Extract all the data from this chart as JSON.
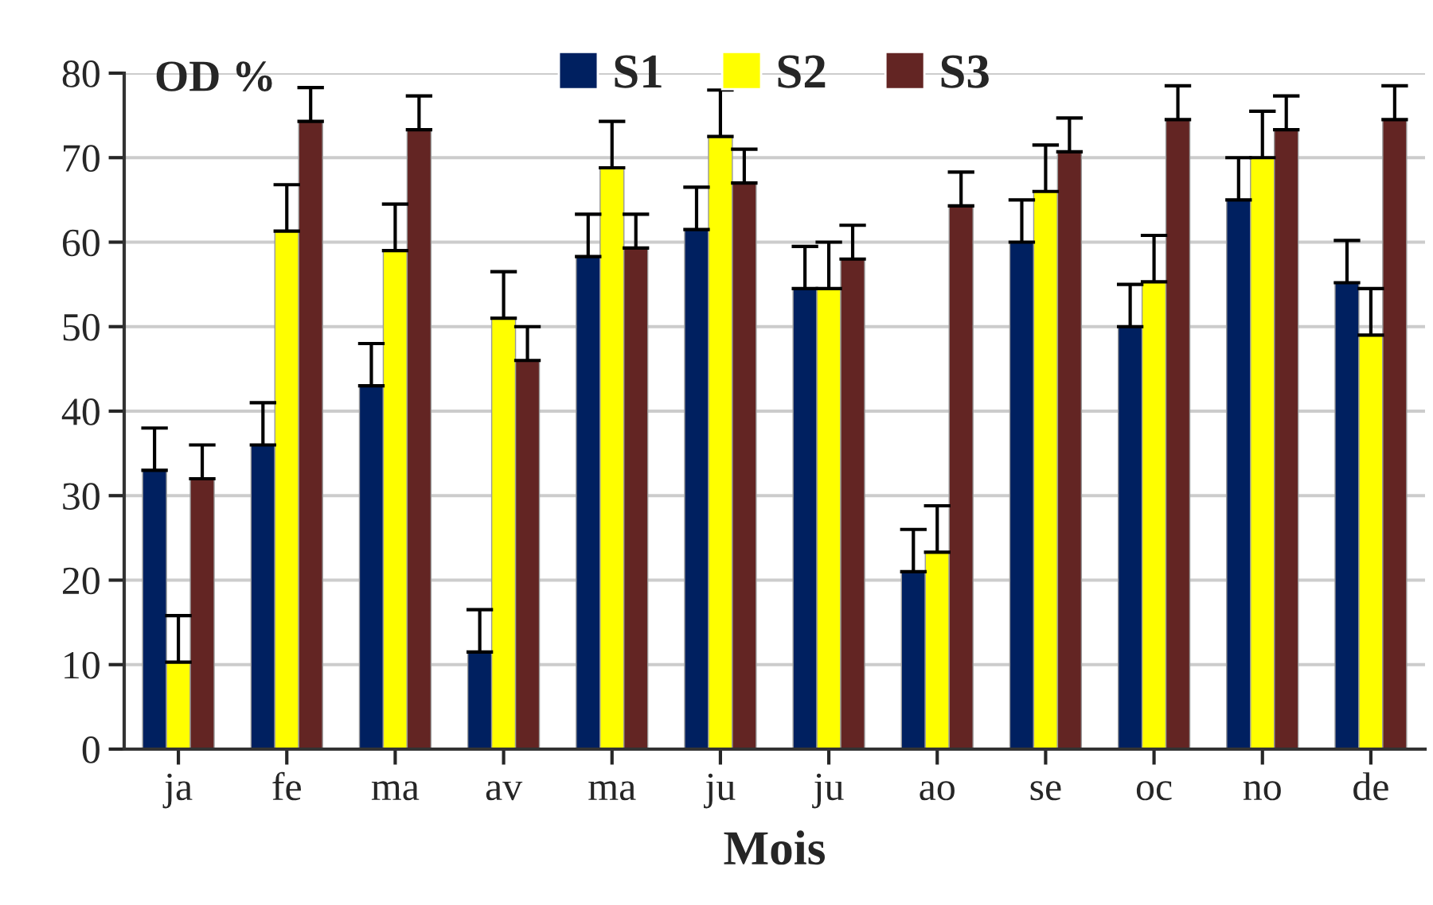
{
  "chart_data": {
    "type": "bar",
    "xlabel": "Mois",
    "ylabel": "OD %",
    "categories": [
      "ja",
      "fe",
      "ma",
      "av",
      "ma",
      "ju",
      "ju",
      "ao",
      "se",
      "oc",
      "no",
      "de"
    ],
    "series": [
      {
        "name": "S1",
        "color": "#002060",
        "values": [
          33,
          36,
          43,
          11.5,
          58.3,
          61.5,
          54.5,
          21,
          60,
          50,
          65,
          55.2
        ],
        "errors": [
          5,
          5,
          5,
          5,
          5,
          5,
          5,
          5,
          5,
          5,
          5,
          5
        ]
      },
      {
        "name": "S2",
        "color": "#ffff00",
        "values": [
          10.3,
          61.3,
          59,
          51,
          68.8,
          72.5,
          54.5,
          23.3,
          66,
          55.3,
          70,
          49
        ],
        "errors": [
          5.5,
          5.5,
          5.5,
          5.5,
          5.5,
          5.5,
          5.5,
          5.5,
          5.5,
          5.5,
          5.5,
          5.5
        ]
      },
      {
        "name": "S3",
        "color": "#632523",
        "values": [
          32,
          74.3,
          73.3,
          46,
          59.3,
          67,
          58,
          64.3,
          70.7,
          74.5,
          73.3,
          74.5
        ],
        "errors": [
          4,
          4,
          4,
          4,
          4,
          4,
          4,
          4,
          4,
          4,
          4,
          4
        ]
      }
    ],
    "ylim": [
      0,
      80
    ],
    "yticks": [
      0,
      10,
      20,
      30,
      40,
      50,
      60,
      70,
      80
    ],
    "grid": "y",
    "legend": "top"
  }
}
